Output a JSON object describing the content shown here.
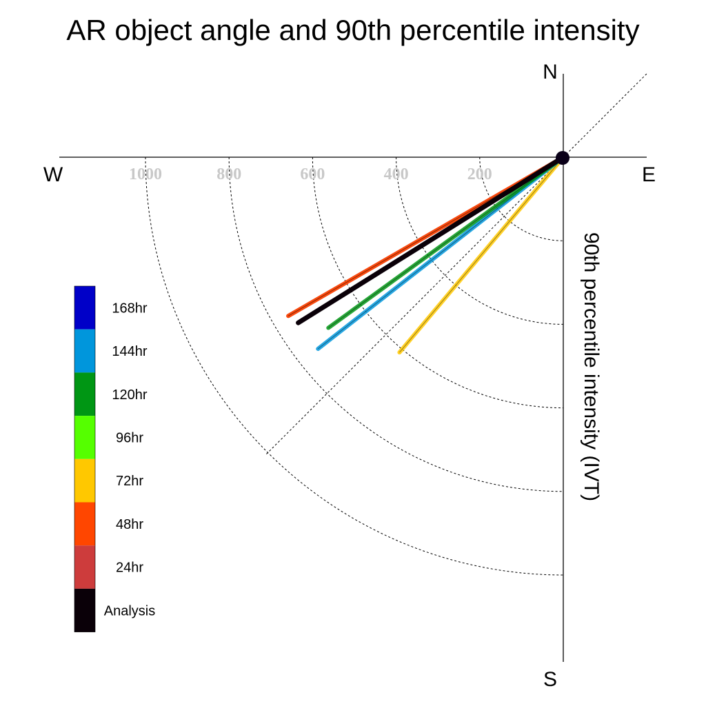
{
  "chart_data": {
    "type": "polar-vector",
    "title": "AR object angle and 90th percentile intensity",
    "radial_label": "90th percentile intensity (IVT)",
    "compass": {
      "n": "N",
      "e": "E",
      "s": "S",
      "w": "W"
    },
    "radial_ticks": [
      200,
      400,
      600,
      800,
      1000
    ],
    "tick_labels": [
      "200",
      "400",
      "600",
      "800",
      "1000"
    ],
    "r_max": 1200,
    "series": [
      {
        "name": "168hr",
        "color": "#0000c8",
        "show_line": false
      },
      {
        "name": "144hr",
        "color": "#0096dc",
        "bearing": 232,
        "intensity": 745,
        "show_line": true
      },
      {
        "name": "120hr",
        "color": "#009614",
        "bearing": 234,
        "intensity": 695,
        "show_line": true
      },
      {
        "name": "96hr",
        "color": "#55ff00",
        "bearing": 238,
        "intensity": 728,
        "show_line": true
      },
      {
        "name": "72hr",
        "color": "#ffc800",
        "bearing": 220,
        "intensity": 610,
        "show_line": true
      },
      {
        "name": "48hr",
        "color": "#ff4600",
        "bearing": 240,
        "intensity": 760,
        "show_line": true
      },
      {
        "name": "24hr",
        "color": "#cd3c3c",
        "bearing": 240,
        "intensity": 760,
        "show_line": true
      },
      {
        "name": "Analysis",
        "color": "#0a0008",
        "bearing": 238,
        "intensity": 748,
        "show_line": true
      }
    ]
  }
}
